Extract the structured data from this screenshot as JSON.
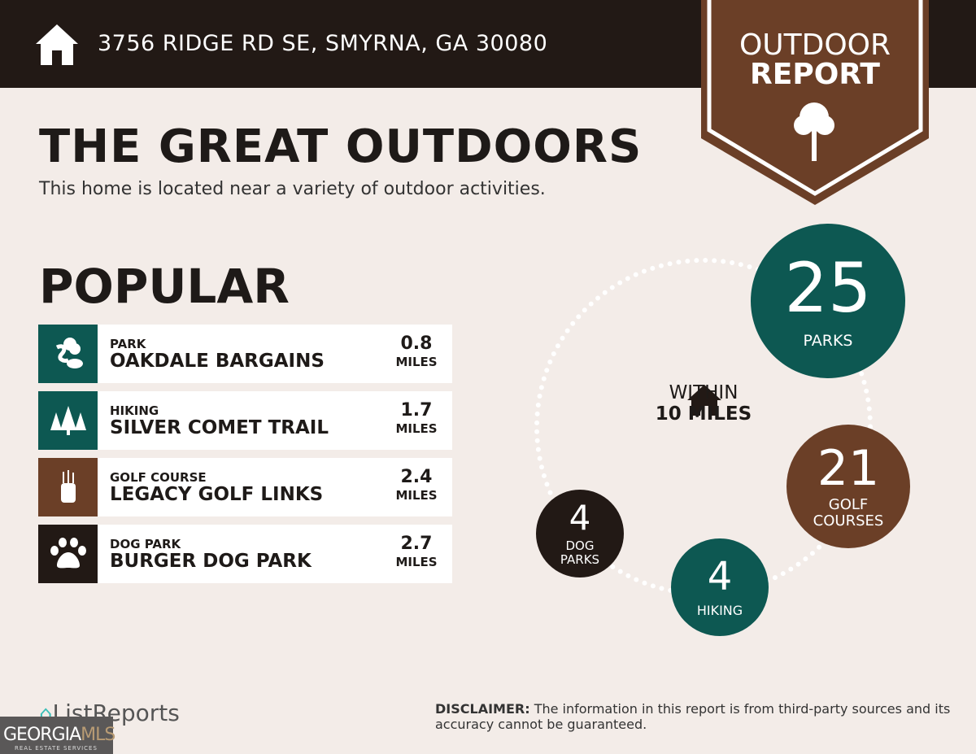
{
  "header": {
    "address": "3756 RIDGE RD SE, SMYRNA, GA 30080",
    "icon": "home-icon"
  },
  "badge": {
    "line1": "OUTDOOR",
    "line2": "REPORT",
    "icon": "tree-icon"
  },
  "title": "THE GREAT OUTDOORS",
  "subtitle": "This home is located near a variety of outdoor activities.",
  "popular": {
    "heading": "POPULAR",
    "items": [
      {
        "category": "PARK",
        "name": "OAKDALE BARGAINS",
        "distance": "0.8",
        "unit": "MILES",
        "icon": "park-icon",
        "color": "#0d5852"
      },
      {
        "category": "HIKING",
        "name": "SILVER COMET TRAIL",
        "distance": "1.7",
        "unit": "MILES",
        "icon": "pine-trees-icon",
        "color": "#0d5852"
      },
      {
        "category": "GOLF COURSE",
        "name": "LEGACY GOLF LINKS",
        "distance": "2.4",
        "unit": "MILES",
        "icon": "golf-bag-icon",
        "color": "#6b3f27"
      },
      {
        "category": "DOG PARK",
        "name": "BURGER DOG PARK",
        "distance": "2.7",
        "unit": "MILES",
        "icon": "paw-icon",
        "color": "#221915"
      }
    ]
  },
  "within": {
    "line1": "WITHIN",
    "line2": "10 MILES"
  },
  "counts": [
    {
      "value": "25",
      "label": "PARKS",
      "color": "#0d5852"
    },
    {
      "value": "21",
      "label1": "GOLF",
      "label2": "COURSES",
      "color": "#6b3f27"
    },
    {
      "value": "4",
      "label": "HIKING",
      "color": "#0d5852"
    },
    {
      "value": "4",
      "label1": "DOG",
      "label2": "PARKS",
      "color": "#221915"
    }
  ],
  "footer": {
    "brand": "ListReports",
    "disclaimer_label": "DISCLAIMER:",
    "disclaimer": " The information in this report is from third-party sources and its accuracy cannot be guaranteed.",
    "mls": "GEORGIA",
    "mls2": "MLS",
    "mls_sub": "REAL ESTATE SERVICES"
  },
  "colors": {
    "teal": "#0d5852",
    "brown": "#6b3f27",
    "dark": "#221915",
    "background": "#f3ece8"
  }
}
